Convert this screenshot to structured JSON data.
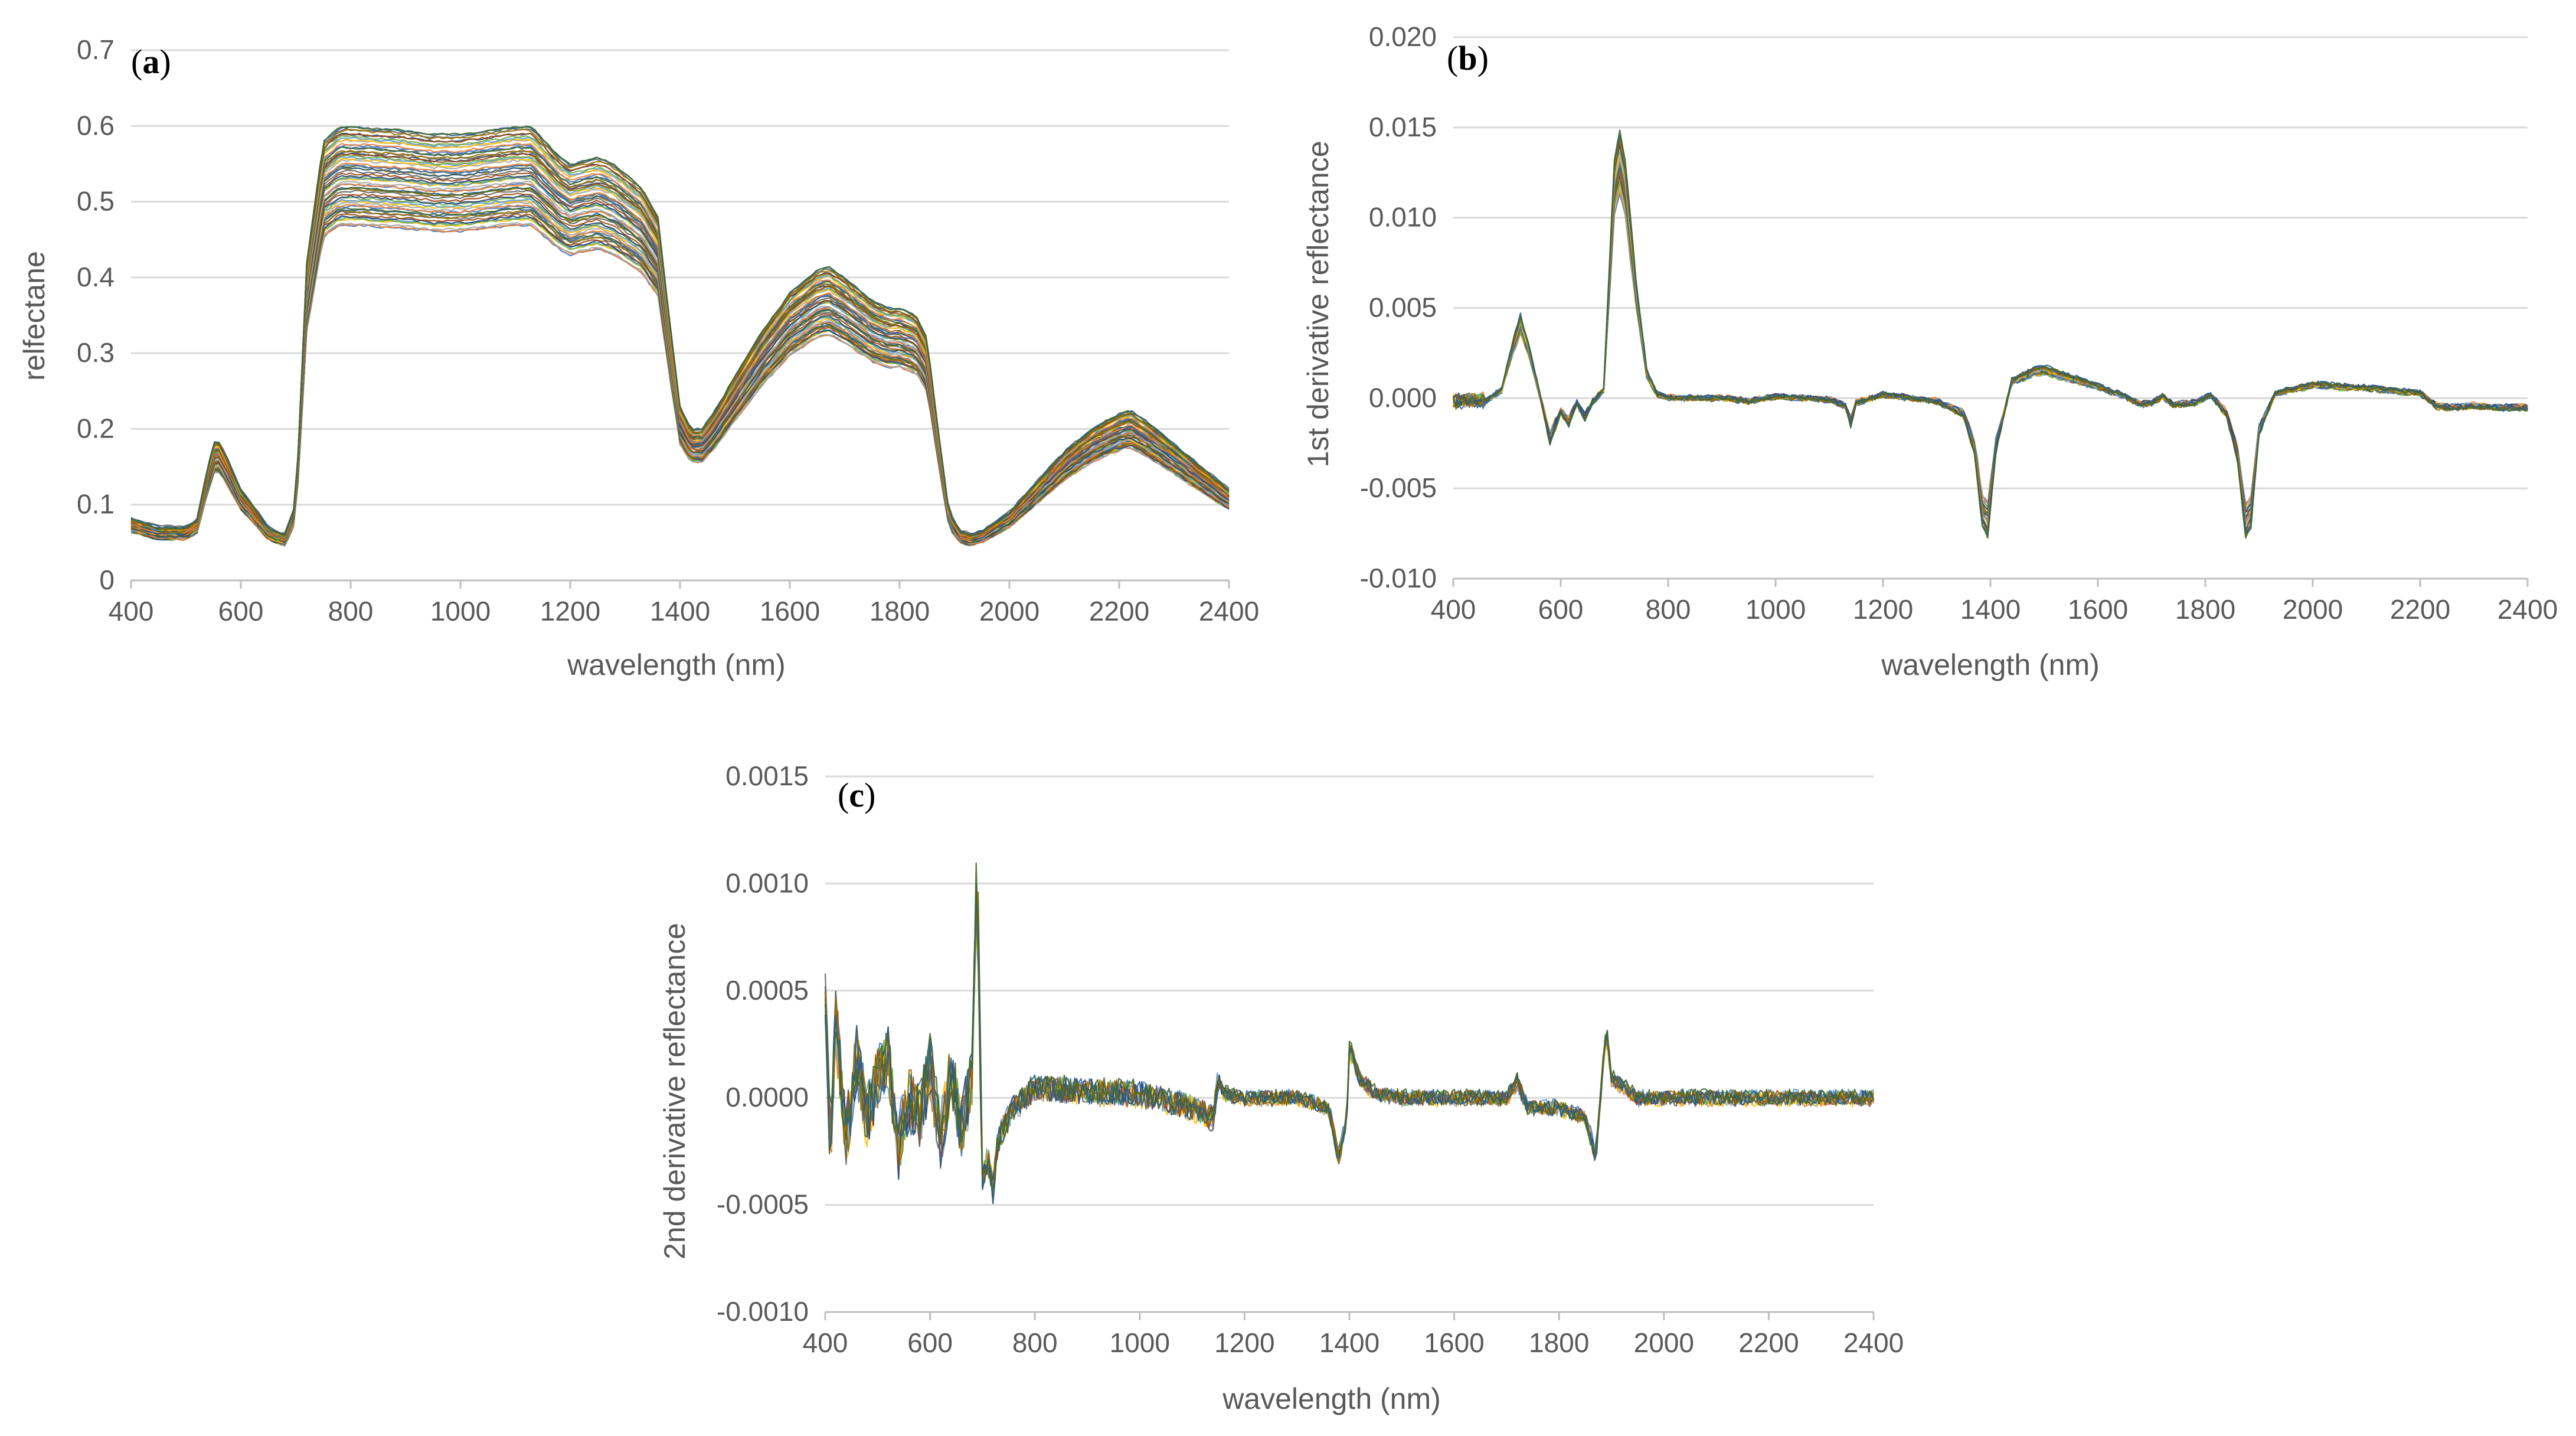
{
  "chart_data": [
    {
      "id": "a",
      "type": "line",
      "panel_label": "a",
      "title": "",
      "xlabel": "wavelength (nm)",
      "ylabel": "relfectane",
      "xlim": [
        400,
        2400
      ],
      "ylim": [
        0,
        0.7
      ],
      "x_ticks": [
        400,
        600,
        800,
        1000,
        1200,
        1400,
        1600,
        1800,
        2000,
        2200,
        2400
      ],
      "y_ticks": [
        0,
        0.1,
        0.2,
        0.3,
        0.4,
        0.5,
        0.6,
        0.7
      ],
      "x_tick_labels": [
        "400",
        "600",
        "800",
        "1000",
        "1200",
        "1400",
        "1600",
        "1800",
        "2000",
        "2200",
        "2400"
      ],
      "y_tick_labels": [
        "0",
        "0.1",
        "0.2",
        "0.3",
        "0.4",
        "0.5",
        "0.6",
        "0.7"
      ],
      "grid": "horizontal",
      "legend": "none",
      "series_count": 60,
      "series_scale_range": [
        0.78,
        1.0
      ],
      "x": [
        400,
        450,
        500,
        520,
        540,
        555,
        570,
        600,
        650,
        680,
        700,
        720,
        750,
        780,
        800,
        900,
        950,
        1000,
        1050,
        1100,
        1130,
        1180,
        1200,
        1250,
        1280,
        1330,
        1360,
        1380,
        1400,
        1420,
        1440,
        1460,
        1500,
        1550,
        1600,
        1650,
        1670,
        1700,
        1750,
        1780,
        1800,
        1830,
        1850,
        1870,
        1890,
        1910,
        1930,
        1950,
        2000,
        2050,
        2100,
        2150,
        2200,
        2220,
        2250,
        2300,
        2350,
        2400
      ],
      "reference_series": [
        0.082,
        0.07,
        0.07,
        0.08,
        0.15,
        0.19,
        0.17,
        0.12,
        0.07,
        0.06,
        0.1,
        0.42,
        0.58,
        0.6,
        0.6,
        0.595,
        0.59,
        0.59,
        0.595,
        0.6,
        0.6,
        0.56,
        0.55,
        0.56,
        0.55,
        0.52,
        0.48,
        0.35,
        0.23,
        0.2,
        0.2,
        0.22,
        0.27,
        0.33,
        0.38,
        0.41,
        0.415,
        0.4,
        0.37,
        0.36,
        0.36,
        0.35,
        0.32,
        0.2,
        0.09,
        0.065,
        0.06,
        0.065,
        0.09,
        0.13,
        0.17,
        0.2,
        0.22,
        0.225,
        0.21,
        0.18,
        0.15,
        0.12
      ]
    },
    {
      "id": "b",
      "type": "line",
      "panel_label": "b",
      "title": "",
      "xlabel": "wavelength (nm)",
      "ylabel": "1st derivative reflectance",
      "xlim": [
        400,
        2400
      ],
      "ylim": [
        -0.01,
        0.02
      ],
      "x_ticks": [
        400,
        600,
        800,
        1000,
        1200,
        1400,
        1600,
        1800,
        2000,
        2200,
        2400
      ],
      "y_ticks": [
        -0.01,
        -0.005,
        0,
        0.005,
        0.01,
        0.015,
        0.02
      ],
      "x_tick_labels": [
        "400",
        "600",
        "800",
        "1000",
        "1200",
        "1400",
        "1600",
        "1800",
        "2000",
        "2200",
        "2400"
      ],
      "y_tick_labels": [
        "-0.010",
        "-0.005",
        "0.000",
        "0.005",
        "0.010",
        "0.015",
        "0.020"
      ],
      "grid": "horizontal",
      "legend": "none",
      "series_count": 24,
      "series_scale_range": [
        0.78,
        1.02
      ],
      "x": [
        400,
        430,
        460,
        490,
        510,
        525,
        540,
        560,
        580,
        600,
        615,
        630,
        645,
        660,
        680,
        700,
        710,
        720,
        740,
        760,
        780,
        800,
        900,
        950,
        1000,
        1100,
        1130,
        1140,
        1150,
        1200,
        1300,
        1350,
        1370,
        1385,
        1395,
        1410,
        1440,
        1480,
        1500,
        1550,
        1600,
        1650,
        1680,
        1700,
        1720,
        1740,
        1780,
        1810,
        1840,
        1860,
        1875,
        1885,
        1900,
        1930,
        1960,
        2000,
        2100,
        2200,
        2230,
        2260,
        2300,
        2350,
        2400
      ],
      "reference_series": [
        -0.0002,
        -0.0001,
        -0.0002,
        0.0005,
        0.003,
        0.0045,
        0.003,
        0.0003,
        -0.0025,
        -0.0008,
        -0.0015,
        -0.0003,
        -0.0012,
        -0.0002,
        0.0005,
        0.013,
        0.0145,
        0.013,
        0.0065,
        0.0015,
        0.0002,
        0.0,
        0.0,
        -0.0002,
        0.0001,
        -0.0001,
        -0.0005,
        -0.0015,
        -0.0003,
        0.0002,
        -0.0002,
        -0.001,
        -0.003,
        -0.007,
        -0.0075,
        -0.003,
        0.001,
        0.0016,
        0.0017,
        0.0012,
        0.0007,
        0.0001,
        -0.0004,
        -0.0003,
        0.0001,
        -0.0004,
        -0.0003,
        0.0002,
        -0.001,
        -0.0035,
        -0.0075,
        -0.007,
        -0.002,
        0.0003,
        0.0005,
        0.0008,
        0.0006,
        0.0003,
        -0.0005,
        -0.0006,
        -0.0005,
        -0.0006,
        -0.0006
      ]
    },
    {
      "id": "c",
      "type": "line",
      "panel_label": "c",
      "title": "",
      "xlabel": "wavelength (nm)",
      "ylabel": "2nd derivative reflectance",
      "xlim": [
        400,
        2400
      ],
      "ylim": [
        -0.001,
        0.0015
      ],
      "x_ticks": [
        400,
        600,
        800,
        1000,
        1200,
        1400,
        1600,
        1800,
        2000,
        2200,
        2400
      ],
      "y_ticks": [
        -0.001,
        -0.0005,
        0,
        0.0005,
        0.001,
        0.0015
      ],
      "x_tick_labels": [
        "400",
        "600",
        "800",
        "1000",
        "1200",
        "1400",
        "1600",
        "1800",
        "2000",
        "2200",
        "2400"
      ],
      "y_tick_labels": [
        "-0.0010",
        "-0.0005",
        "0.0000",
        "0.0005",
        "0.0010",
        "0.0015"
      ],
      "grid": "horizontal",
      "legend": "none",
      "series_count": 12,
      "series_scale_range": [
        0.85,
        1.0
      ],
      "x": [
        400,
        410,
        420,
        440,
        460,
        480,
        500,
        520,
        540,
        560,
        580,
        600,
        620,
        640,
        660,
        680,
        690,
        695,
        700,
        710,
        720,
        730,
        760,
        800,
        900,
        1000,
        1100,
        1140,
        1150,
        1160,
        1200,
        1300,
        1360,
        1380,
        1395,
        1400,
        1420,
        1450,
        1500,
        1600,
        1700,
        1720,
        1740,
        1800,
        1850,
        1870,
        1885,
        1890,
        1900,
        1950,
        2000,
        2100,
        2200,
        2300,
        2400
      ],
      "reference_series": [
        0.0005,
        -0.0003,
        0.0004,
        -0.0002,
        0.0002,
        -0.0001,
        0.0001,
        0.0002,
        -0.00025,
        0.0,
        -0.0001,
        0.00015,
        -0.0002,
        0.00012,
        -0.00015,
        0.0001,
        0.0012,
        0.0003,
        -0.0004,
        -0.0003,
        -0.00045,
        -0.0002,
        -5e-05,
        5e-05,
        3e-05,
        2e-05,
        -5e-05,
        -0.0001,
        0.0001,
        2e-05,
        0.0,
        0.0,
        -5e-05,
        -0.0003,
        -0.0001,
        0.00025,
        0.0001,
        2e-05,
        0.0,
        0.0,
        0.0,
        8e-05,
        -5e-05,
        -5e-05,
        -0.0001,
        -0.0003,
        0.0002,
        0.00035,
        0.0001,
        0.0,
        0.0,
        0.0,
        0.0,
        0.0,
        0.0
      ]
    }
  ],
  "palette": [
    "#4472c4",
    "#ed7d31",
    "#a5a5a5",
    "#ffc000",
    "#5b9bd5",
    "#70ad47",
    "#264478",
    "#9e480e",
    "#636363",
    "#997300",
    "#255e91",
    "#43682b"
  ]
}
